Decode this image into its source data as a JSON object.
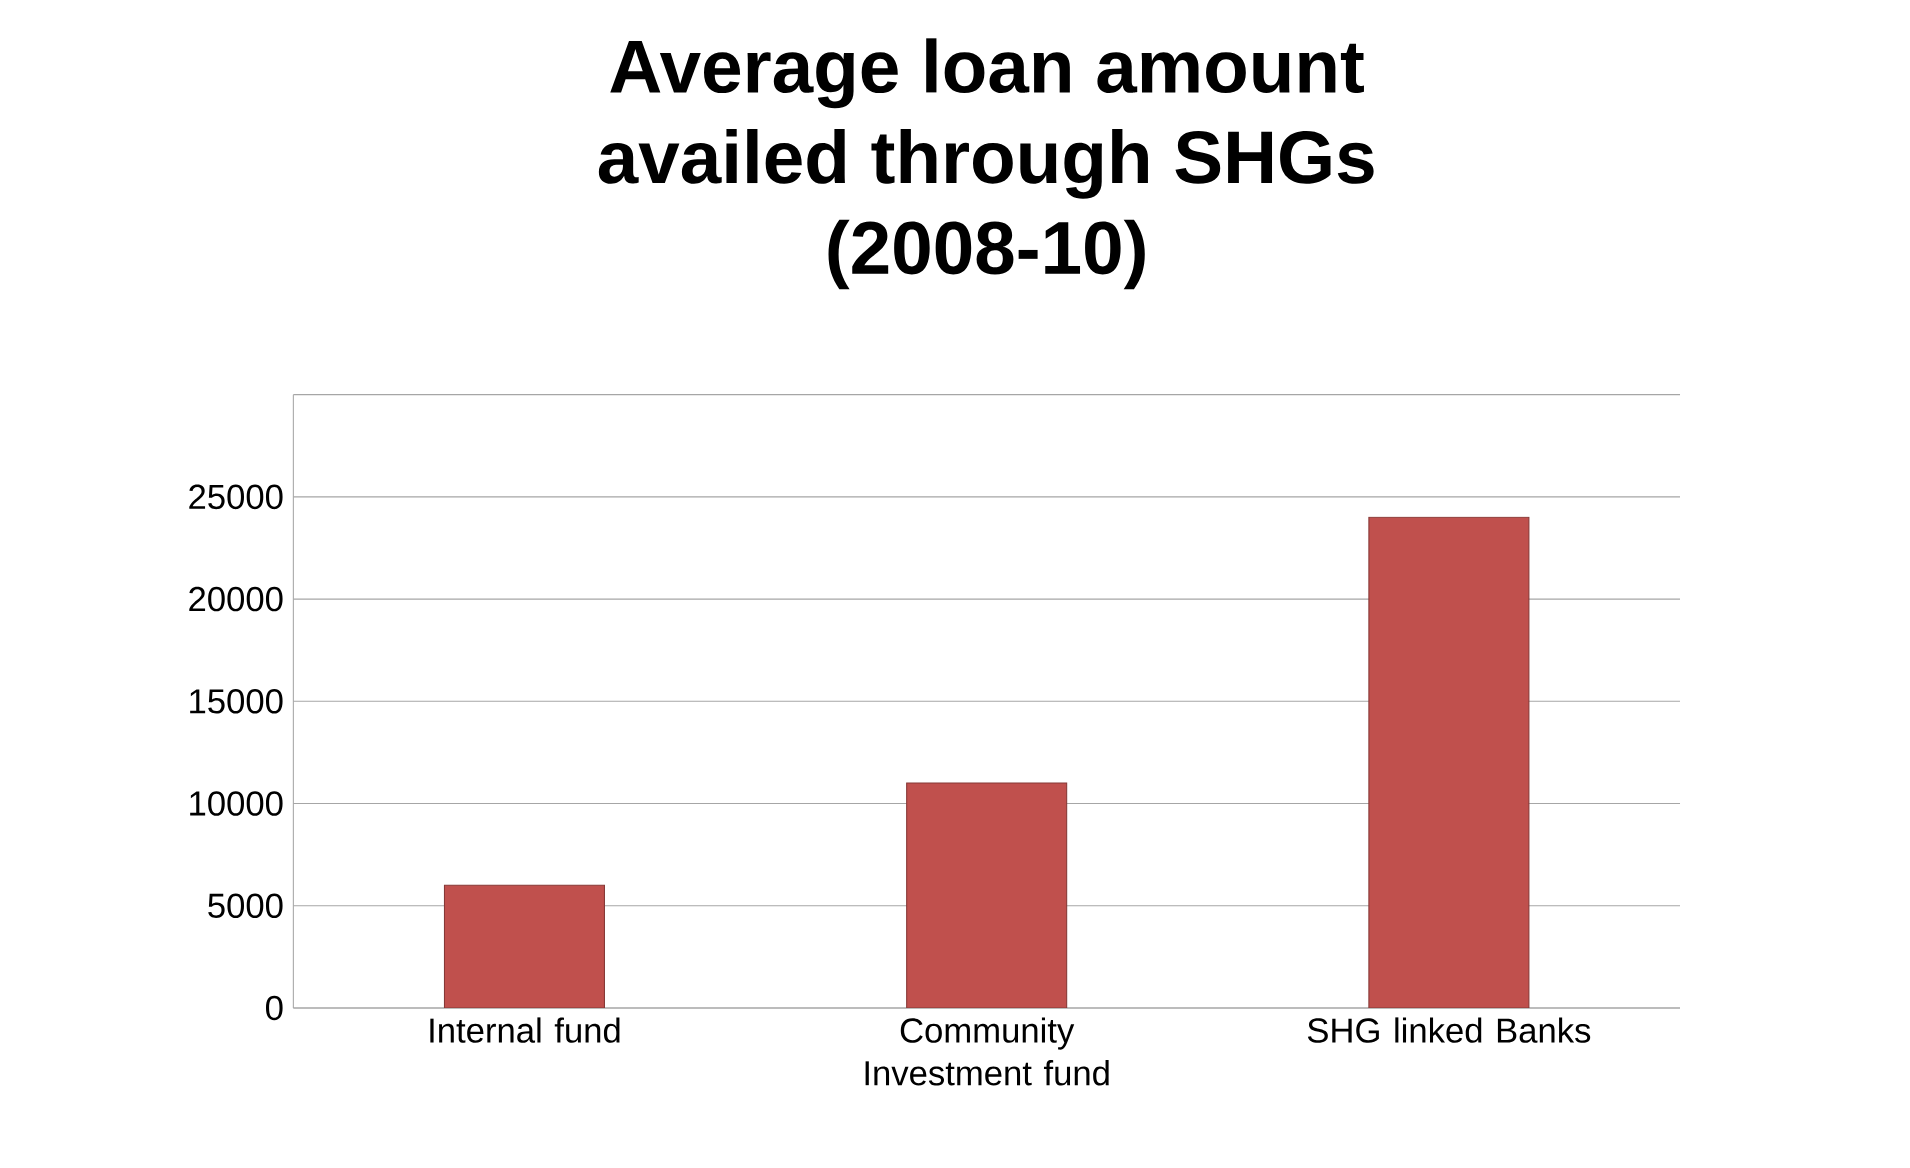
{
  "chart_data": {
    "type": "bar",
    "title": "Average loan amount availed through SHGs (2008-10)",
    "categories": [
      "Internal fund",
      "Community Investment fund",
      "SHG linked Banks"
    ],
    "values": [
      6000,
      11000,
      24000
    ],
    "color": "#c0504d",
    "ylim": [
      0,
      30000
    ],
    "yticks": [
      0,
      5000,
      10000,
      15000,
      20000,
      25000,
      {
        "value": 30000,
        "label": null
      }
    ],
    "grid": "y"
  }
}
